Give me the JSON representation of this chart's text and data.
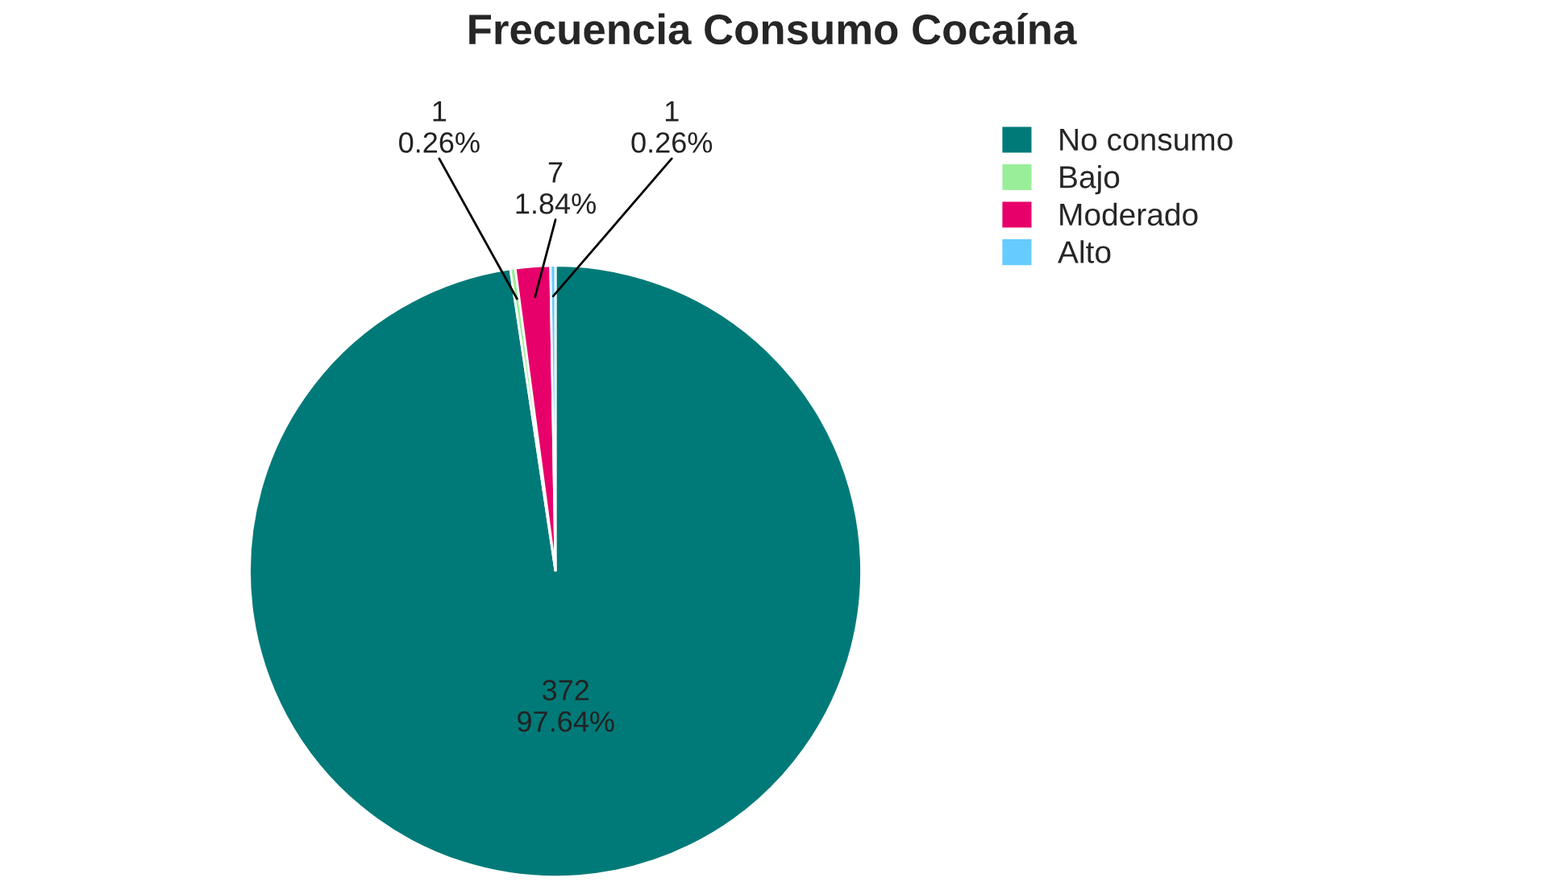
{
  "chart_data": {
    "type": "pie",
    "title": "Frecuencia Consumo Cocaína",
    "categories": [
      "No consumo",
      "Bajo",
      "Moderado",
      "Alto"
    ],
    "values": [
      372,
      1,
      7,
      1
    ],
    "value_labels": [
      "372\n97.64%",
      "1\n0.26%",
      "7\n1.84%",
      "1\n0.26%"
    ],
    "colors": [
      "#007a78",
      "#99ee99",
      "#e8006a",
      "#66ccff"
    ],
    "legend": "top right"
  }
}
